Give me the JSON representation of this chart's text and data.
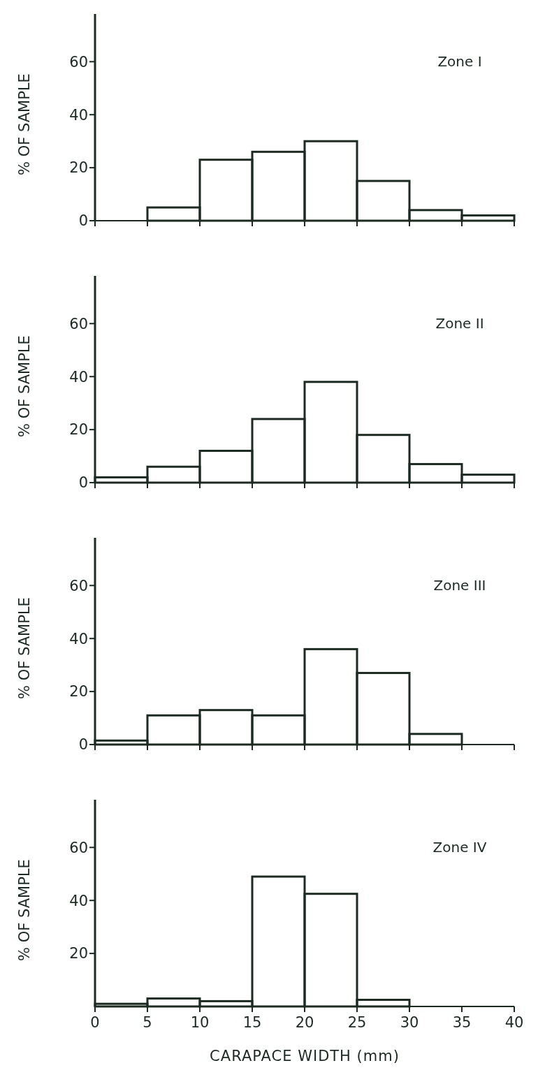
{
  "chart_data": [
    {
      "type": "histogram",
      "title": "Zone I",
      "ylabel": "% OF SAMPLE",
      "bins": [
        0,
        5,
        10,
        15,
        20,
        25,
        30,
        35,
        40
      ],
      "values": [
        0,
        5,
        23,
        26,
        30,
        15,
        4,
        2
      ],
      "color": "#1c2a22",
      "xlim": [
        0,
        40
      ],
      "xticks": [
        0,
        5,
        10,
        15,
        20,
        25,
        30,
        35,
        40
      ],
      "ylim": [
        0,
        78
      ],
      "yticks": [
        0,
        20,
        40,
        60
      ],
      "tick_labels": "y"
    },
    {
      "type": "histogram",
      "title": "Zone II",
      "ylabel": "% OF SAMPLE",
      "bins": [
        0,
        5,
        10,
        15,
        20,
        25,
        30,
        35,
        40
      ],
      "values": [
        2,
        6,
        12,
        24,
        38,
        18,
        7,
        3
      ],
      "color": "#1c2a22",
      "xlim": [
        0,
        40
      ],
      "xticks": [
        0,
        5,
        10,
        15,
        20,
        25,
        30,
        35,
        40
      ],
      "ylim": [
        0,
        78
      ],
      "yticks": [
        0,
        20,
        40,
        60
      ],
      "tick_labels": "y"
    },
    {
      "type": "histogram",
      "title": "Zone III",
      "ylabel": "% OF SAMPLE",
      "bins": [
        0,
        5,
        10,
        15,
        20,
        25,
        30,
        35,
        40
      ],
      "values": [
        1.5,
        11,
        13,
        11,
        36,
        27,
        4,
        0
      ],
      "color": "#1c2a22",
      "xlim": [
        0,
        40
      ],
      "xticks": [
        0,
        5,
        10,
        15,
        20,
        25,
        30,
        35,
        40
      ],
      "ylim": [
        0,
        78
      ],
      "yticks": [
        0,
        20,
        40,
        60
      ],
      "tick_labels": "y"
    },
    {
      "type": "histogram",
      "title": "Zone IV",
      "xlabel": "CARAPACE WIDTH (mm)",
      "ylabel": "% OF SAMPLE",
      "bins": [
        0,
        5,
        10,
        15,
        20,
        25,
        30,
        35,
        40
      ],
      "values": [
        1,
        3,
        2,
        49,
        42.5,
        2.5,
        0,
        0
      ],
      "color": "#1c2a22",
      "xlim": [
        0,
        40
      ],
      "xticks": [
        0,
        5,
        10,
        15,
        20,
        25,
        30,
        35,
        40
      ],
      "ylim": [
        0,
        78
      ],
      "yticks": [
        20,
        40,
        60
      ]
    }
  ]
}
